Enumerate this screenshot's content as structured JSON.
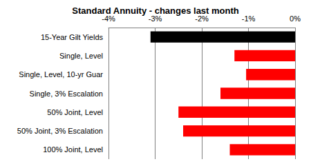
{
  "chart_data": {
    "type": "bar",
    "orientation": "horizontal",
    "title": "Standard Annuity - changes last month",
    "categories": [
      "15-Year Gilt Yields",
      "Single, Level",
      "Single, Level, 10-yr Guar",
      "Single, 3% Escalation",
      "50% Joint, Level",
      "50% Joint, 3% Escalation",
      "100% Joint, Level"
    ],
    "values": [
      -3.1,
      -1.3,
      -1.05,
      -1.6,
      -2.5,
      -2.4,
      -1.4
    ],
    "colors": [
      "#000000",
      "#ff0000",
      "#ff0000",
      "#ff0000",
      "#ff0000",
      "#ff0000",
      "#ff0000"
    ],
    "xlim": [
      -4,
      0
    ],
    "xticks": [
      {
        "value": -4,
        "label": "-4%"
      },
      {
        "value": -3,
        "label": "-3%"
      },
      {
        "value": -2,
        "label": "-2%"
      },
      {
        "value": -1,
        "label": "-1%"
      },
      {
        "value": 0,
        "label": "0%"
      }
    ],
    "grid": true
  }
}
